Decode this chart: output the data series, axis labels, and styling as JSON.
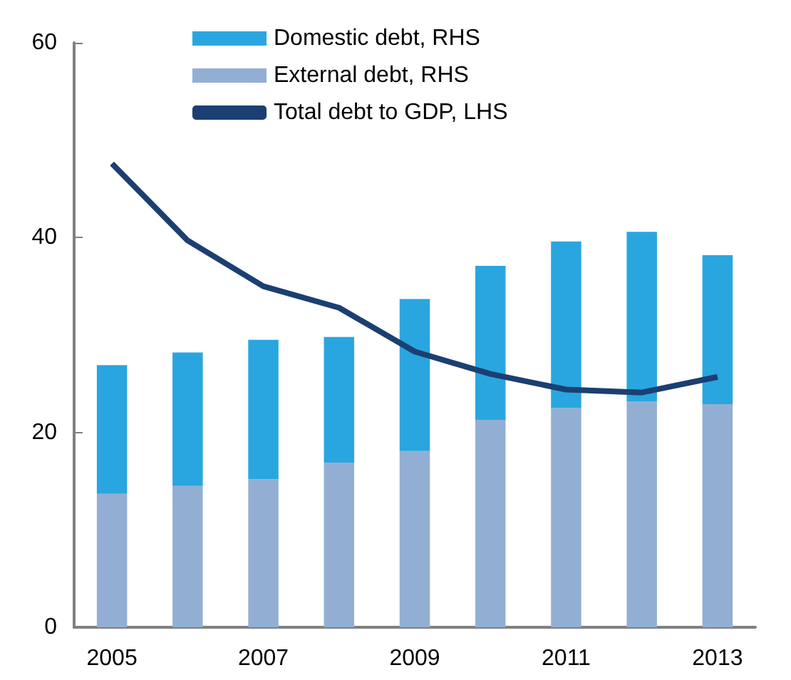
{
  "chart_data": {
    "type": "bar",
    "stacked": true,
    "categories": [
      "2005",
      null,
      "2007",
      null,
      "2009",
      null,
      "2011",
      null,
      "2013"
    ],
    "series": [
      {
        "name": "External debt, RHS",
        "color": "#92afd3",
        "values": [
          13.7,
          14.5,
          15.2,
          16.9,
          18.1,
          21.3,
          22.5,
          23.2,
          22.9
        ]
      },
      {
        "name": "Domestic debt, RHS",
        "color": "#29a6df",
        "values": [
          13.2,
          13.7,
          14.3,
          12.9,
          15.6,
          15.8,
          17.1,
          17.4,
          15.3
        ]
      },
      {
        "name": "Total debt to GDP, LHS",
        "type": "line",
        "color": "#1b3f72",
        "values": [
          47.6,
          39.7,
          35.0,
          32.8,
          28.3,
          26.0,
          24.4,
          24.1,
          25.7
        ]
      }
    ],
    "ylim": [
      0,
      60
    ],
    "yticks": [
      0,
      20,
      40,
      60
    ],
    "grid": false,
    "legend": "top",
    "marker": "none"
  }
}
